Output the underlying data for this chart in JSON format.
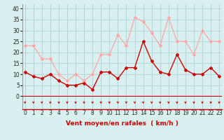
{
  "x": [
    0,
    1,
    2,
    3,
    4,
    5,
    6,
    7,
    8,
    9,
    10,
    11,
    12,
    13,
    14,
    15,
    16,
    17,
    18,
    19,
    20,
    21,
    22,
    23
  ],
  "mean_wind": [
    11,
    9,
    8,
    10,
    7,
    5,
    5,
    6,
    3,
    11,
    11,
    8,
    13,
    13,
    25,
    16,
    11,
    10,
    19,
    12,
    10,
    10,
    13,
    9
  ],
  "gust_wind": [
    23,
    23,
    17,
    17,
    10,
    7,
    10,
    7,
    10,
    19,
    19,
    28,
    23,
    36,
    34,
    29,
    23,
    36,
    25,
    25,
    19,
    30,
    25,
    25
  ],
  "mean_color": "#cc0000",
  "gust_color": "#ffaaaa",
  "bg_color": "#d8f0f0",
  "grid_color": "#b0d0d0",
  "xlabel": "Vent moyen/en rafales  ( km/h )",
  "xlabel_color": "#cc0000",
  "yticks": [
    0,
    5,
    10,
    15,
    20,
    25,
    30,
    35,
    40
  ],
  "ylim": [
    -6,
    42
  ],
  "xlim": [
    -0.3,
    23.3
  ],
  "tick_fontsize": 5.5,
  "label_fontsize": 6.5
}
